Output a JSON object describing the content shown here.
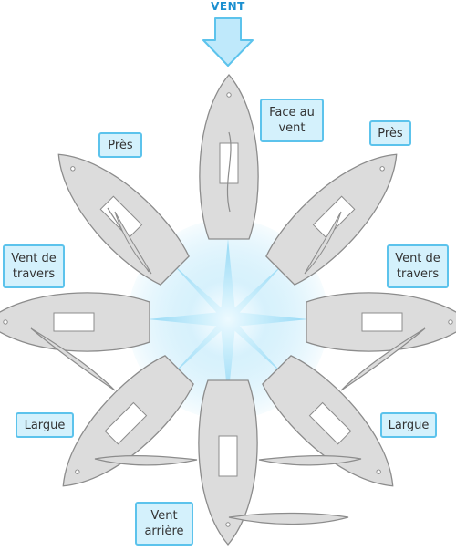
{
  "wind": {
    "label": "VENT"
  },
  "labels": {
    "face_au_vent": "Face au\nvent",
    "pres_left": "Près",
    "pres_right": "Près",
    "vent_de_travers_left": "Vent de\ntravers",
    "vent_de_travers_right": "Vent de\ntravers",
    "largue_left": "Largue",
    "largue_right": "Largue",
    "vent_arriere": "Vent\narrière"
  },
  "colors": {
    "wind_accent": "#1a8fd0",
    "label_fill": "#d4f1fc",
    "label_border": "#5cc3ec",
    "hull_fill": "#dcdcdc",
    "hull_stroke": "#8c8c8c",
    "star": "#6fcdf3"
  }
}
